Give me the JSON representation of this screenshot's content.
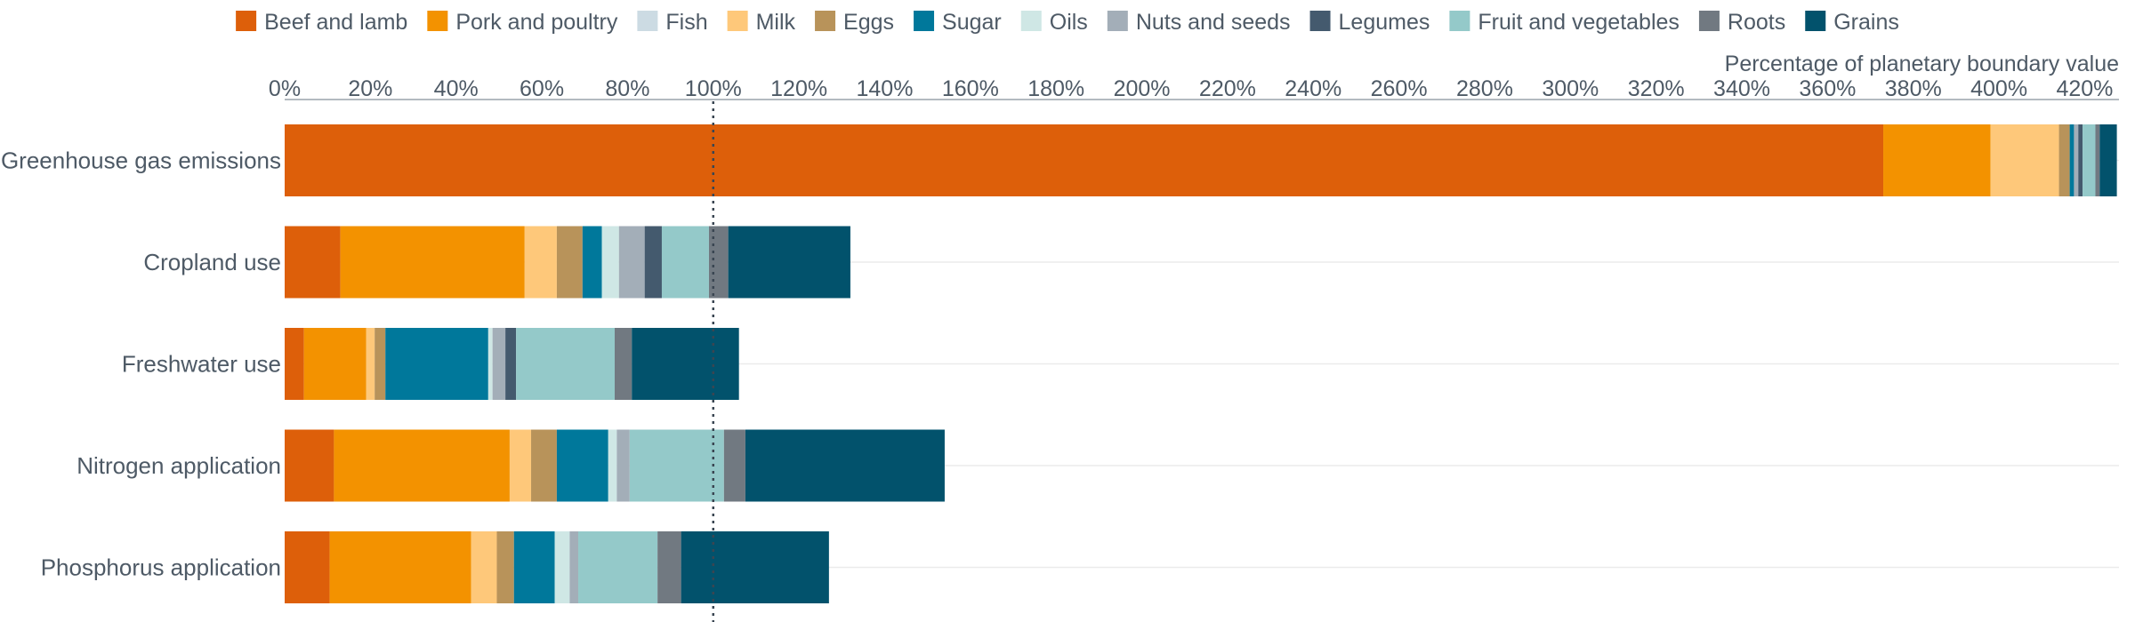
{
  "chart_data": {
    "type": "bar",
    "orientation": "horizontal",
    "stacked": true,
    "axis_title": "Percentage of planetary boundary value",
    "x_tick_labels": [
      "0%",
      "20%",
      "40%",
      "60%",
      "80%",
      "100%",
      "120%",
      "140%",
      "160%",
      "180%",
      "200%",
      "220%",
      "240%",
      "260%",
      "280%",
      "300%",
      "320%",
      "340%",
      "360%",
      "380%",
      "400%",
      "420%"
    ],
    "xlim": [
      0,
      428
    ],
    "x_axis_position": "top",
    "reference_line": {
      "value": 100,
      "style": "dotted"
    },
    "grid": "horizontal-row-separators",
    "legend_position": "top",
    "categories": [
      "Greenhouse gas emissions",
      "Cropland use",
      "Freshwater use",
      "Nitrogen application",
      "Phosphorus application"
    ],
    "series": [
      {
        "name": "Beef and lamb",
        "color": "#dd5f0a",
        "values": [
          373,
          13,
          4.5,
          11.5,
          10.5
        ]
      },
      {
        "name": "Pork and poultry",
        "color": "#f39200",
        "values": [
          25,
          43,
          14.5,
          41,
          33
        ]
      },
      {
        "name": "Fish",
        "color": "#ccdbe3",
        "values": [
          0,
          0,
          0,
          0,
          0
        ]
      },
      {
        "name": "Milk",
        "color": "#fec87a",
        "values": [
          16,
          7.5,
          2,
          5,
          6
        ]
      },
      {
        "name": "Eggs",
        "color": "#b8935a",
        "values": [
          2.5,
          6,
          2.5,
          6,
          4
        ]
      },
      {
        "name": "Sugar",
        "color": "#00789b",
        "values": [
          1,
          4.5,
          24,
          12,
          9.5
        ]
      },
      {
        "name": "Oils",
        "color": "#cfe7e5",
        "values": [
          0,
          4,
          1,
          2,
          3.5
        ]
      },
      {
        "name": "Nuts and seeds",
        "color": "#a3aeb8",
        "values": [
          1,
          6,
          3,
          3,
          2
        ]
      },
      {
        "name": "Legumes",
        "color": "#445a6e",
        "values": [
          1,
          4,
          2.5,
          0,
          0
        ]
      },
      {
        "name": "Fruit and vegetables",
        "color": "#94c9c9",
        "values": [
          3,
          11,
          23,
          22,
          18.5
        ]
      },
      {
        "name": "Roots",
        "color": "#717981",
        "values": [
          1,
          4.5,
          4,
          5,
          5.5
        ]
      },
      {
        "name": "Grains",
        "color": "#02526c",
        "values": [
          4,
          28.5,
          25,
          46.5,
          34.5
        ]
      }
    ]
  }
}
